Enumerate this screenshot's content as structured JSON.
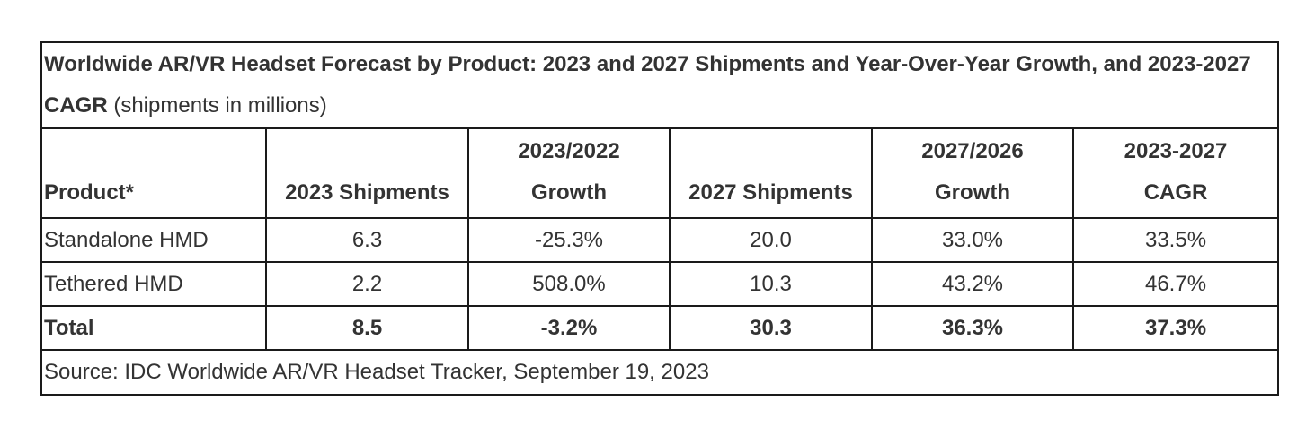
{
  "table": {
    "title_bold": "Worldwide AR/VR Headset Forecast by Product: 2023 and 2027 Shipments and Year-Over-Year Growth, and 2023-2027 CAGR",
    "title_suffix": "(shipments in millions)",
    "headers": [
      {
        "line1": "",
        "line2": "Product*"
      },
      {
        "line1": "",
        "line2": "2023 Shipments"
      },
      {
        "line1": "2023/2022",
        "line2": "Growth"
      },
      {
        "line1": "",
        "line2": "2027 Shipments"
      },
      {
        "line1": "2027/2026",
        "line2": "Growth"
      },
      {
        "line1": "2023-2027",
        "line2": "CAGR"
      }
    ],
    "rows": [
      {
        "product": "Standalone HMD",
        "s2023": "6.3",
        "g2023": "-25.3%",
        "s2027": "20.0",
        "g2027": "33.0%",
        "cagr": "33.5%"
      },
      {
        "product": "Tethered HMD",
        "s2023": "2.2",
        "g2023": "508.0%",
        "s2027": "10.3",
        "g2027": "43.2%",
        "cagr": "46.7%"
      }
    ],
    "total": {
      "product": "Total",
      "s2023": "8.5",
      "g2023": "-3.2%",
      "s2027": "30.3",
      "g2027": "36.3%",
      "cagr": "37.3%"
    },
    "source": "Source: IDC Worldwide AR/VR Headset Tracker, September 19, 2023"
  }
}
